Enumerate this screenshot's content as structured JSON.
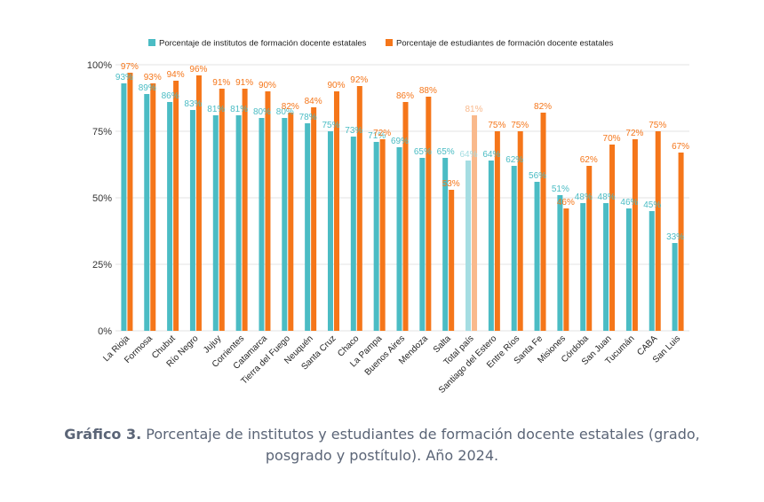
{
  "chart_data": {
    "type": "bar",
    "title": "",
    "xlabel": "",
    "ylabel": "",
    "ylim": [
      0,
      100
    ],
    "y_ticks": [
      "0%",
      "25%",
      "50%",
      "75%",
      "100%"
    ],
    "grid": true,
    "legend_position": "top",
    "categories": [
      "La Rioja",
      "Formosa",
      "Chubut",
      "Río Negro",
      "Jujuy",
      "Corrientes",
      "Catamarca",
      "Tierra del Fuego",
      "Neuquén",
      "Santa Cruz",
      "Chaco",
      "La Pampa",
      "Buenos Aires",
      "Mendoza",
      "Salta",
      "Total país",
      "Santiago del Estero",
      "Entre Ríos",
      "Santa Fe",
      "Misiones",
      "Córdoba",
      "San Juan",
      "Tucumán",
      "CABA",
      "San Luis"
    ],
    "highlight_category": "Total país",
    "series": [
      {
        "name": "Porcentaje de institutos de formación docente estatales",
        "color": "#4bbcc4",
        "light_color": "#a5dde2",
        "values": [
          93,
          89,
          86,
          83,
          81,
          81,
          80,
          80,
          78,
          75,
          73,
          71,
          69,
          65,
          65,
          64,
          64,
          62,
          56,
          51,
          48,
          48,
          46,
          45,
          33
        ]
      },
      {
        "name": "Porcentaje de estudiantes de formación docente estatales",
        "color": "#f5761a",
        "light_color": "#f9b98c",
        "values": [
          97,
          93,
          94,
          96,
          91,
          91,
          90,
          82,
          84,
          90,
          92,
          72,
          86,
          88,
          53,
          81,
          75,
          75,
          82,
          46,
          62,
          70,
          72,
          75,
          67
        ]
      }
    ]
  },
  "caption": {
    "lead": "Gráfico 3.",
    "text": " Porcentaje de institutos y estudiantes de formación docente estatales (grado, posgrado y postítulo). Año 2024."
  }
}
